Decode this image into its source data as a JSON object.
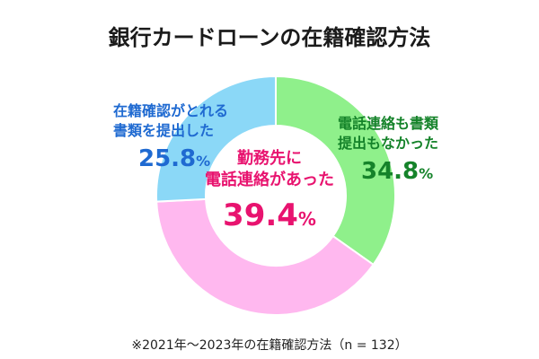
{
  "title": "銀行カードローンの在籍確認方法",
  "footnote": "※2021年〜2023年の在籍確認方法（n = 132）",
  "unit": "%",
  "colors": {
    "green": "#8ff08b",
    "pink": "#ffb8ef",
    "blue": "#8bd8f7"
  },
  "chart_data": {
    "type": "pie",
    "title": "銀行カードローンの在籍確認方法",
    "slices": [
      {
        "label_lines": [
          "電話連絡も書類",
          "提出もなかった"
        ],
        "value": 34.8,
        "color": "#8ff08b"
      },
      {
        "label_lines": [
          "勤務先に",
          "電話連絡があった"
        ],
        "value": 39.4,
        "color": "#ffb8ef"
      },
      {
        "label_lines": [
          "在籍確認がとれる",
          "書類を提出した"
        ],
        "value": 25.8,
        "color": "#8bd8f7"
      }
    ]
  }
}
